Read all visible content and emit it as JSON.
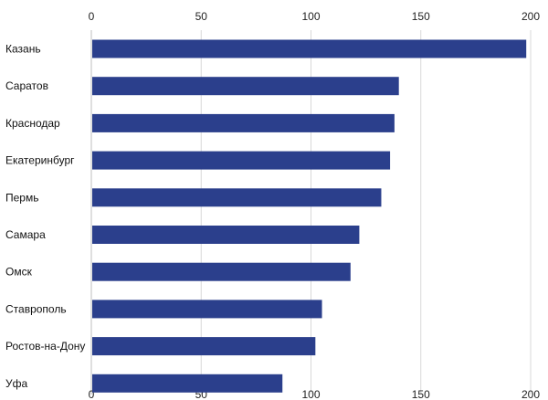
{
  "chart_data": {
    "type": "bar",
    "orientation": "horizontal",
    "title": "",
    "xlabel": "",
    "ylabel": "",
    "xlim": [
      0,
      200
    ],
    "x_ticks": [
      0,
      50,
      100,
      150,
      200
    ],
    "x_axis_position": "top-and-bottom",
    "grid": true,
    "legend": "none",
    "bar_color": "#2b3f8c",
    "categories": [
      "Казань",
      "Саратов",
      "Краснодар",
      "Екатеринбург",
      "Пермь",
      "Самара",
      "Омск",
      "Ставрополь",
      "Ростов-на-Дону",
      "Уфа"
    ],
    "values": [
      198,
      140,
      138,
      136,
      132,
      122,
      118,
      105,
      102,
      87
    ]
  }
}
